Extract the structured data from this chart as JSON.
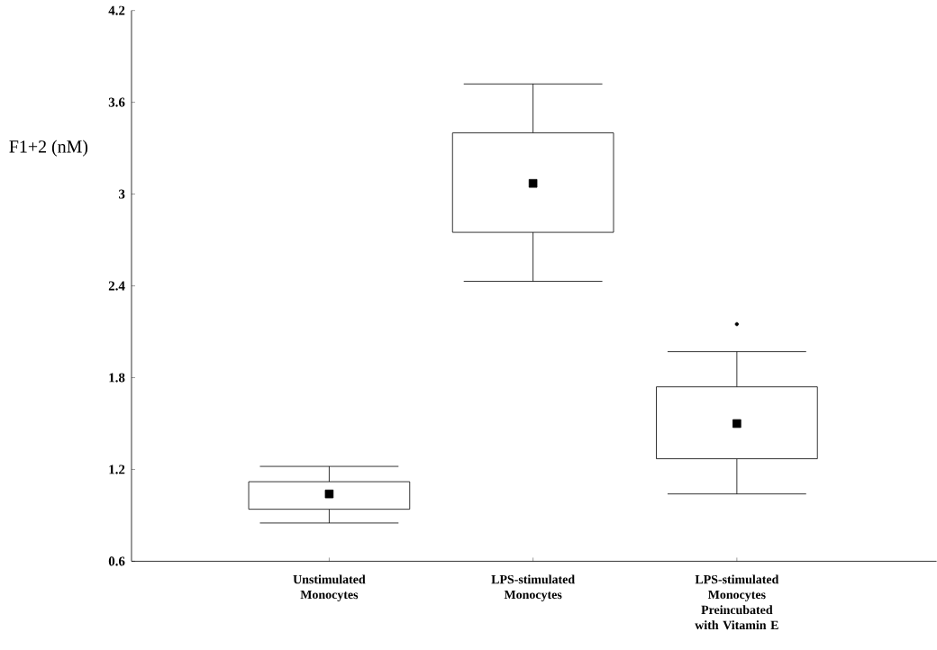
{
  "chart_data": {
    "type": "box",
    "ylabel": "F1+2 (nM)",
    "categories": [
      "Unstimulated Monocytes",
      "LPS-stimulated Monocytes",
      "LPS-stimulated Monocytes Preincubated with Vitamin E"
    ],
    "boxes": [
      {
        "low": 0.85,
        "q1": 0.94,
        "median": 1.04,
        "q3": 1.12,
        "high": 1.22
      },
      {
        "low": 2.43,
        "q1": 2.75,
        "median": 3.07,
        "q3": 3.4,
        "high": 3.72
      },
      {
        "low": 1.04,
        "q1": 1.27,
        "median": 1.5,
        "q3": 1.74,
        "high": 1.97,
        "outliers": [
          2.15
        ]
      }
    ],
    "color": "#000000",
    "marker": "square",
    "grid": false,
    "ylim": [
      0.6,
      4.2
    ],
    "yticks": [
      0.6,
      1.2,
      1.8,
      2.4,
      3,
      3.6,
      4.2
    ]
  }
}
